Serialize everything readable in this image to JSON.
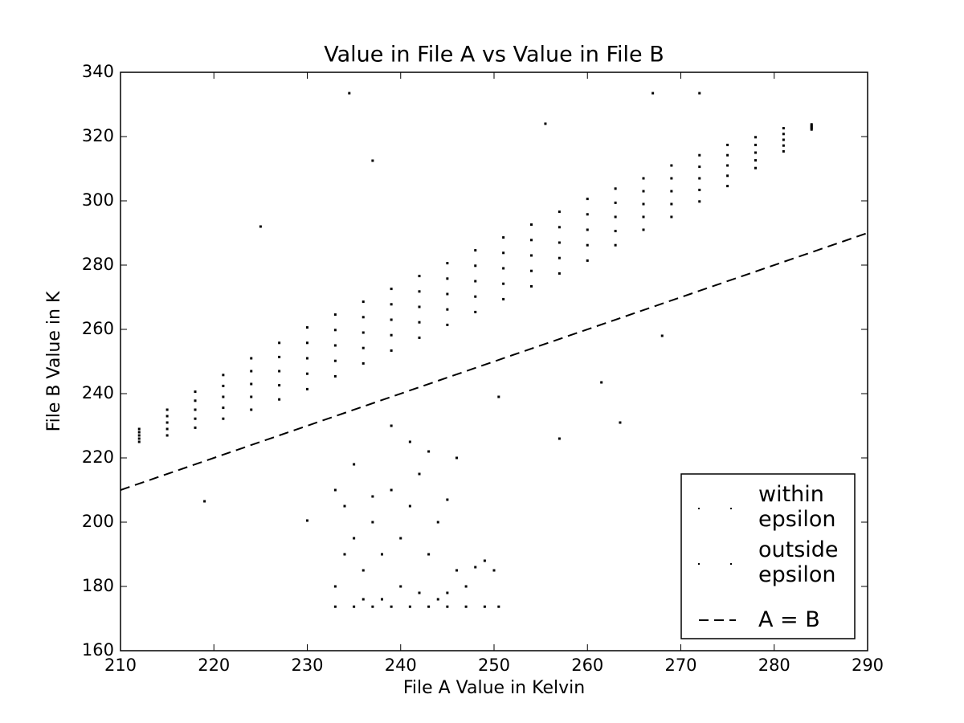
{
  "chart_data": {
    "type": "scatter",
    "title": "Value in File A vs Value in File B",
    "x_label": "File A Value in Kelvin",
    "y_label": "File B Value in K",
    "xlim": [
      210,
      290
    ],
    "ylim": [
      160,
      340
    ],
    "xticks": [
      210,
      220,
      230,
      240,
      250,
      260,
      270,
      280,
      290
    ],
    "yticks": [
      160,
      180,
      200,
      220,
      240,
      260,
      280,
      300,
      320,
      340
    ],
    "legend": "lower right",
    "series": [
      {
        "name": "within epsilon",
        "color": "#000000",
        "marker": "point",
        "x": [
          212,
          212,
          212,
          212,
          212,
          215,
          215,
          215,
          215,
          215,
          218,
          218,
          218,
          218,
          218,
          221,
          221,
          221,
          221,
          221,
          224,
          224,
          224,
          224,
          224,
          227,
          227,
          227,
          227,
          227,
          230,
          230,
          230,
          230,
          230,
          233,
          233,
          233,
          233,
          233,
          236,
          236,
          236,
          236,
          236,
          239,
          239,
          239,
          239,
          239,
          242,
          242,
          242,
          242,
          242,
          245,
          245,
          245,
          245,
          245,
          248,
          248,
          248,
          248,
          248,
          251,
          251,
          251,
          251,
          251,
          254,
          254,
          254,
          254,
          254,
          257,
          257,
          257,
          257,
          257,
          260,
          260,
          260,
          260,
          260,
          263,
          263,
          263,
          263,
          263,
          266,
          266,
          266,
          266,
          266,
          269,
          269,
          269,
          269,
          269,
          272,
          272,
          272,
          272,
          272,
          275,
          275,
          275,
          275,
          275,
          278,
          278,
          278,
          278,
          278,
          281,
          281,
          281,
          281,
          281,
          284,
          284,
          284,
          284,
          284
        ],
        "values": [
          225,
          226,
          227,
          228,
          229,
          227,
          229,
          231,
          233,
          235,
          229.4,
          232.2,
          235,
          237.8,
          240.6,
          232.2,
          235.6,
          239,
          242.4,
          245.8,
          235,
          239,
          243,
          247,
          251,
          238.2,
          242.6,
          247,
          251.4,
          255.8,
          241.4,
          246.2,
          251,
          255.8,
          260.6,
          245.4,
          250.2,
          255,
          259.8,
          264.6,
          249.4,
          254.2,
          259,
          263.8,
          268.6,
          253.4,
          258.2,
          263,
          267.8,
          272.6,
          257.4,
          262.2,
          267,
          271.8,
          276.6,
          261.4,
          266.2,
          271,
          275.8,
          280.6,
          265.4,
          270.2,
          275,
          279.8,
          284.6,
          269.4,
          274.2,
          279,
          283.8,
          288.6,
          273.4,
          278.2,
          283,
          287.8,
          292.6,
          277.4,
          282.2,
          287,
          291.8,
          296.6,
          281.4,
          286.2,
          291,
          295.8,
          300.6,
          286.2,
          290.6,
          295,
          299.4,
          303.8,
          291,
          295,
          299,
          303,
          307,
          295,
          299,
          303,
          307,
          311,
          299.8,
          303.4,
          307,
          310.6,
          314.2,
          304.6,
          307.8,
          311,
          314.2,
          317.4,
          310.2,
          312.6,
          315,
          317.4,
          319.8,
          315.4,
          317.2,
          319,
          320.8,
          322.6,
          322.2,
          322.6,
          323,
          323.4,
          323.8
        ]
      },
      {
        "name": "outside epsilon",
        "color": "#000000",
        "marker": "point",
        "x": [
          233,
          234,
          235,
          236,
          237,
          238,
          239,
          240,
          241,
          242,
          243,
          244,
          245,
          246,
          247,
          248,
          249,
          250,
          233,
          236,
          238,
          242,
          244,
          241,
          243,
          239,
          235,
          246,
          234,
          237,
          240,
          245,
          233,
          235,
          237,
          239,
          241,
          243,
          245,
          247,
          249,
          250.5,
          234.5,
          267,
          272,
          255.5,
          237,
          219,
          230,
          263.5,
          257,
          250.5,
          261.5,
          268,
          225
        ],
        "values": [
          210,
          205,
          195,
          185,
          200,
          190,
          210,
          180,
          205,
          215,
          190,
          200,
          207,
          185,
          180,
          186,
          188,
          185,
          180,
          176,
          176,
          178,
          176,
          225,
          222,
          230,
          218,
          220,
          190,
          208,
          195,
          178,
          173.7,
          173.7,
          173.7,
          173.7,
          173.7,
          173.7,
          173.7,
          173.7,
          173.7,
          173.7,
          333.5,
          333.5,
          333.5,
          324,
          312.5,
          206.5,
          200.5,
          231,
          226,
          239,
          243.5,
          258,
          292
        ]
      },
      {
        "name": "A = B",
        "color": "#000000",
        "marker": "dashed-line",
        "x": [
          210,
          290
        ],
        "values": [
          210,
          290
        ]
      }
    ]
  }
}
